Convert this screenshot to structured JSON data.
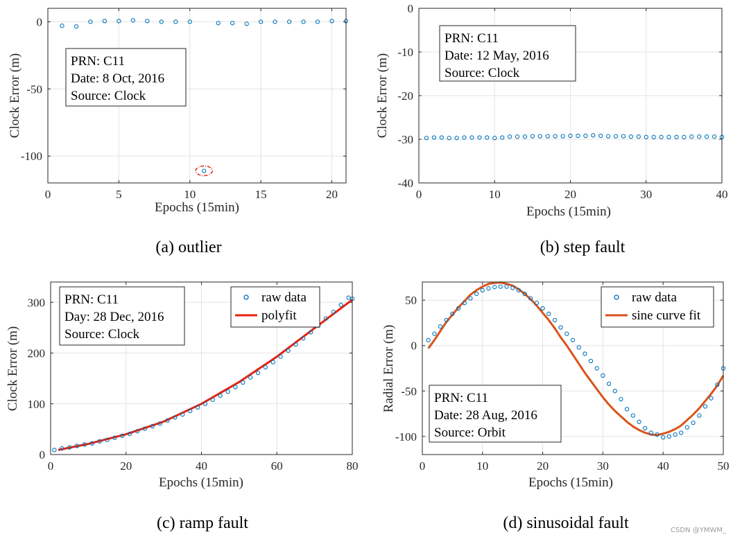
{
  "watermark": "CSDN @YMWM_",
  "colors": {
    "marker": "#0072BD",
    "fit": "#E8200C",
    "sinefit": "#D95319",
    "grid": "#e3e3e3",
    "outlier": "#E8200C"
  },
  "chart_data": [
    {
      "type": "scatter",
      "caption": "(a) outlier",
      "xlabel": "Epochs (15min)",
      "ylabel": "Clock Error (m)",
      "xlim": [
        0,
        21
      ],
      "ylim": [
        -120,
        10
      ],
      "xticks": [
        0,
        5,
        10,
        15,
        20
      ],
      "yticks": [
        0,
        -50,
        -100
      ],
      "grid": true,
      "info": [
        "PRN: C11",
        "Date: 8 Oct, 2016",
        "Source: Clock"
      ],
      "info_position": "left",
      "highlight_index": 10,
      "series": [
        {
          "name": "raw data",
          "x": [
            1,
            2,
            3,
            4,
            5,
            6,
            7,
            8,
            9,
            10,
            11,
            12,
            13,
            14,
            15,
            16,
            17,
            18,
            19,
            20,
            21
          ],
          "y": [
            -3,
            -3.5,
            0,
            0.5,
            0.5,
            1,
            0.5,
            0,
            0,
            0,
            -111,
            -1,
            -1,
            -1.5,
            0,
            0,
            0,
            0,
            0,
            0.5,
            0.5
          ]
        }
      ]
    },
    {
      "type": "scatter",
      "caption": "(b) step fault",
      "xlabel": "Epochs (15min)",
      "ylabel": "Clock Error (m)",
      "xlim": [
        0,
        40
      ],
      "ylim": [
        -40,
        0
      ],
      "xticks": [
        0,
        10,
        20,
        30,
        40
      ],
      "yticks": [
        0,
        -10,
        -20,
        -30,
        -40
      ],
      "grid": true,
      "info": [
        "PRN: C11",
        "Date: 12 May, 2016",
        "Source: Clock"
      ],
      "info_position": "left",
      "series": [
        {
          "name": "raw data",
          "x": [
            1,
            2,
            3,
            4,
            5,
            6,
            7,
            8,
            9,
            10,
            11,
            12,
            13,
            14,
            15,
            16,
            17,
            18,
            19,
            20,
            21,
            22,
            23,
            24,
            25,
            26,
            27,
            28,
            29,
            30,
            31,
            32,
            33,
            34,
            35,
            36,
            37,
            38,
            39,
            40
          ],
          "y": [
            -29.7,
            -29.6,
            -29.6,
            -29.7,
            -29.7,
            -29.6,
            -29.6,
            -29.6,
            -29.6,
            -29.7,
            -29.6,
            -29.4,
            -29.4,
            -29.4,
            -29.3,
            -29.3,
            -29.3,
            -29.3,
            -29.3,
            -29.2,
            -29.2,
            -29.2,
            -29.1,
            -29.2,
            -29.3,
            -29.3,
            -29.3,
            -29.4,
            -29.4,
            -29.5,
            -29.5,
            -29.5,
            -29.5,
            -29.5,
            -29.5,
            -29.4,
            -29.4,
            -29.4,
            -29.4,
            -29.5
          ]
        }
      ]
    },
    {
      "type": "scatter+line",
      "caption": "(c) ramp fault",
      "xlabel": "Epochs (15min)",
      "ylabel": "Clock Error (m)",
      "xlim": [
        0,
        80
      ],
      "ylim": [
        0,
        340
      ],
      "xticks": [
        0,
        20,
        40,
        60,
        80
      ],
      "yticks": [
        0,
        100,
        200,
        300
      ],
      "grid": true,
      "info": [
        "PRN: C11",
        "Day: 28 Dec, 2016",
        "Source: Clock"
      ],
      "info_position": "left",
      "legend": [
        "raw data",
        "polyfit"
      ],
      "legend_position": "top-right",
      "series": [
        {
          "name": "raw data",
          "x": [
            1,
            3,
            5,
            7,
            9,
            11,
            13,
            15,
            17,
            19,
            21,
            23,
            25,
            27,
            29,
            31,
            33,
            35,
            37,
            39,
            41,
            43,
            45,
            47,
            49,
            51,
            53,
            55,
            57,
            59,
            61,
            63,
            65,
            67,
            69,
            71,
            73,
            75,
            77,
            79,
            80
          ],
          "y": [
            9,
            12,
            14,
            17,
            20,
            22,
            26,
            29,
            33,
            37,
            41,
            46,
            51,
            56,
            61,
            67,
            73,
            79,
            86,
            93,
            100,
            108,
            116,
            124,
            133,
            142,
            152,
            161,
            172,
            182,
            193,
            205,
            217,
            229,
            241,
            254,
            268,
            281,
            295,
            309,
            307
          ]
        },
        {
          "name": "polyfit",
          "x": [
            2,
            10,
            20,
            30,
            40,
            50,
            60,
            70,
            80
          ],
          "y": [
            9,
            21,
            40,
            65,
            100,
            143,
            193,
            249,
            305
          ]
        }
      ]
    },
    {
      "type": "scatter+line",
      "caption": "(d) sinusoidal fault",
      "xlabel": "Epochs (15min)",
      "ylabel": "Radial Error (m)",
      "xlim": [
        0,
        50
      ],
      "ylim": [
        -120,
        70
      ],
      "xticks": [
        0,
        10,
        20,
        30,
        40,
        50
      ],
      "yticks": [
        50,
        0,
        -50,
        -100
      ],
      "grid": true,
      "info": [
        "PRN: C11",
        "Date: 28 Aug, 2016",
        "Source: Orbit"
      ],
      "info_position": "bottom-left",
      "legend": [
        "raw data",
        "sine curve fit"
      ],
      "legend_position": "top-right",
      "series": [
        {
          "name": "raw data",
          "x": [
            1,
            2,
            3,
            4,
            5,
            6,
            7,
            8,
            9,
            10,
            11,
            12,
            13,
            14,
            15,
            16,
            17,
            18,
            19,
            20,
            21,
            22,
            23,
            24,
            25,
            26,
            27,
            28,
            29,
            30,
            31,
            32,
            33,
            34,
            35,
            36,
            37,
            38,
            39,
            40,
            41,
            42,
            43,
            44,
            45,
            46,
            47,
            48,
            49,
            50
          ],
          "y": [
            6,
            13,
            21,
            28,
            35,
            41,
            47,
            52,
            57,
            61,
            63,
            64.5,
            65,
            65,
            63.5,
            61,
            57,
            52,
            47,
            41,
            35,
            28,
            20,
            13,
            6,
            -2,
            -9,
            -17,
            -25,
            -33,
            -42,
            -50,
            -59,
            -70,
            -77,
            -84,
            -91,
            -96,
            -98,
            -101,
            -100,
            -98,
            -96,
            -90,
            -85,
            -77,
            -67,
            -58,
            -43,
            -25
          ]
        },
        {
          "name": "sine curve fit",
          "x": [
            1,
            2,
            3,
            4,
            5,
            6,
            7,
            8,
            9,
            10,
            11,
            12,
            13,
            14,
            15,
            16,
            17,
            18,
            19,
            20,
            21,
            22,
            23,
            24,
            25,
            26,
            27,
            28,
            29,
            30,
            31,
            32,
            33,
            34,
            35,
            36,
            37,
            38,
            39,
            40,
            41,
            42,
            43,
            44,
            45,
            46,
            47,
            48,
            49,
            50
          ],
          "y": [
            -3,
            6,
            16,
            26,
            34,
            42,
            49,
            56,
            61,
            65,
            68,
            69,
            69.5,
            68,
            66,
            62,
            57,
            51,
            44,
            36,
            28,
            19,
            9,
            0,
            -10,
            -20,
            -30,
            -39,
            -48,
            -57,
            -65,
            -72,
            -78,
            -84,
            -89,
            -93,
            -96,
            -98,
            -98.5,
            -97,
            -95,
            -92,
            -88,
            -82,
            -76,
            -69,
            -61,
            -53,
            -44,
            -33
          ]
        }
      ]
    }
  ]
}
